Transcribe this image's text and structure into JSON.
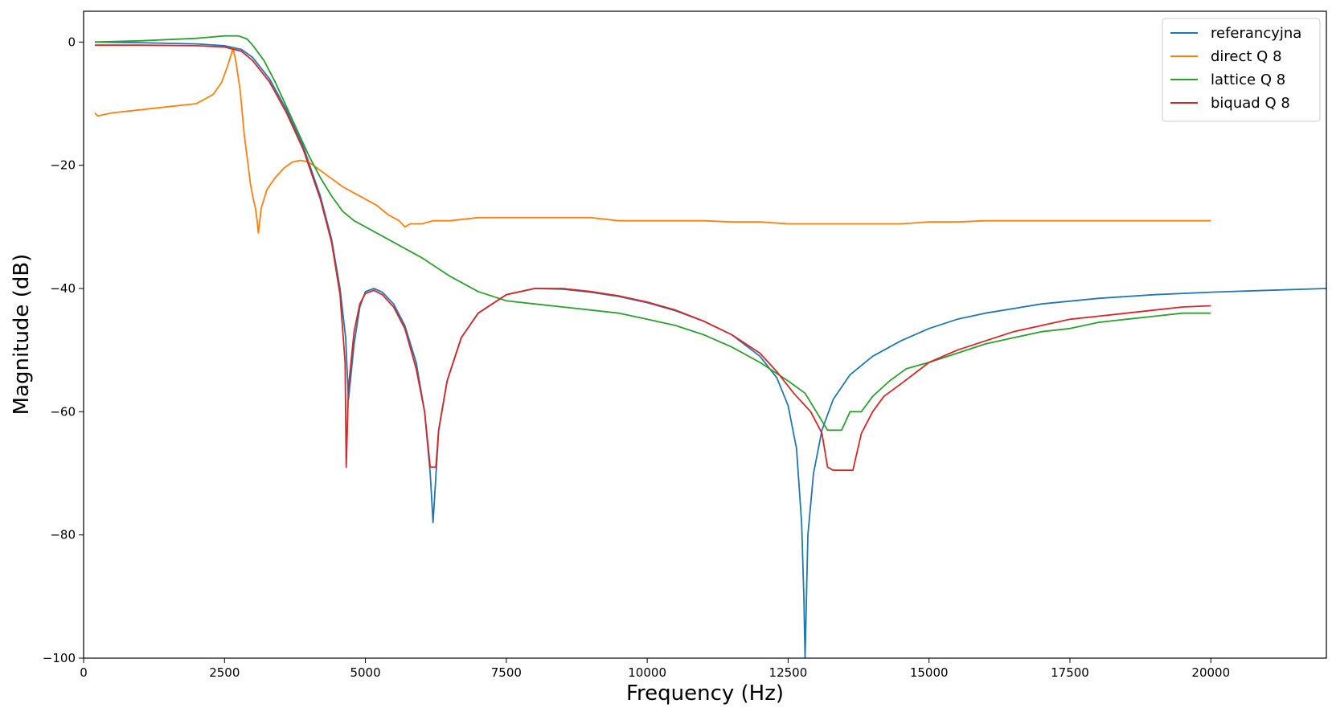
{
  "chart_data": {
    "type": "line",
    "title": "",
    "xlabel": "Frequency (Hz)",
    "ylabel": "Magnitude (dB)",
    "xlim": [
      0,
      22050
    ],
    "ylim": [
      -100,
      5
    ],
    "xticks": [
      0,
      2500,
      5000,
      7500,
      10000,
      12500,
      15000,
      17500,
      20000
    ],
    "xtick_labels": [
      "0",
      "2500",
      "5000",
      "7500",
      "10000",
      "12500",
      "15000",
      "17500",
      "20000"
    ],
    "yticks": [
      0,
      -20,
      -40,
      -60,
      -80,
      -100
    ],
    "ytick_labels": [
      "0",
      "−20",
      "−40",
      "−60",
      "−80",
      "−100"
    ],
    "grid": false,
    "legend": "top-right",
    "series": [
      {
        "name": "referancyjna",
        "color": "#1f77b4",
        "x": [
          200,
          1000,
          2000,
          2500,
          2800,
          3000,
          3300,
          3600,
          3900,
          4200,
          4400,
          4550,
          4650,
          4700,
          4800,
          4900,
          5000,
          5150,
          5300,
          5500,
          5700,
          5900,
          6050,
          6150,
          6200,
          6300,
          6450,
          6700,
          7000,
          7500,
          8000,
          8500,
          9000,
          9500,
          10000,
          10500,
          11000,
          11500,
          12000,
          12300,
          12500,
          12650,
          12740,
          12780,
          12800,
          12850,
          12950,
          13100,
          13300,
          13600,
          14000,
          14500,
          15000,
          15500,
          16000,
          17000,
          18000,
          19000,
          20000,
          21000,
          22050
        ],
        "y": [
          0,
          -0.1,
          -0.3,
          -0.6,
          -1.2,
          -2.5,
          -6,
          -11,
          -17,
          -25,
          -32,
          -40,
          -48,
          -58,
          -49,
          -43,
          -40.5,
          -40,
          -40.6,
          -42.5,
          -46,
          -52,
          -60,
          -70,
          -78,
          -63,
          -55,
          -48,
          -44,
          -41,
          -40,
          -40.1,
          -40.6,
          -41.3,
          -42.3,
          -43.6,
          -45.3,
          -47.5,
          -51,
          -54.5,
          -59,
          -66,
          -78,
          -90,
          -100,
          -80,
          -70,
          -63,
          -58,
          -54,
          -51,
          -48.5,
          -46.5,
          -45,
          -44,
          -42.5,
          -41.6,
          -41,
          -40.6,
          -40.3,
          -40
        ]
      },
      {
        "name": "direct Q 8",
        "color": "#ff7f0e",
        "x": [
          200,
          250,
          500,
          1000,
          1500,
          2000,
          2300,
          2450,
          2550,
          2620,
          2650,
          2700,
          2780,
          2850,
          2920,
          2960,
          3000,
          3050,
          3080,
          3100,
          3150,
          3250,
          3400,
          3550,
          3700,
          3850,
          4000,
          4150,
          4300,
          4450,
          4600,
          4800,
          5000,
          5200,
          5400,
          5600,
          5700,
          5800,
          6000,
          6200,
          6500,
          7000,
          7500,
          8000,
          8500,
          9000,
          9500,
          10000,
          10500,
          11000,
          11500,
          12000,
          12500,
          13000,
          13500,
          14000,
          14500,
          15000,
          15500,
          16000,
          16500,
          17000,
          17500,
          18000,
          18500,
          19000,
          19500,
          20000
        ],
        "y": [
          -11.5,
          -12,
          -11.5,
          -11,
          -10.5,
          -10,
          -8.5,
          -6.5,
          -4,
          -2,
          -1,
          -3,
          -8,
          -15,
          -20,
          -23,
          -25,
          -27,
          -29,
          -31,
          -27,
          -24,
          -22,
          -20.5,
          -19.5,
          -19.2,
          -19.5,
          -20.5,
          -21.5,
          -22.5,
          -23.5,
          -24.5,
          -25.5,
          -26.5,
          -28,
          -29,
          -30,
          -29.5,
          -29.5,
          -29,
          -29,
          -28.5,
          -28.5,
          -28.5,
          -28.5,
          -28.5,
          -29,
          -29,
          -29,
          -29,
          -29.2,
          -29.2,
          -29.5,
          -29.5,
          -29.5,
          -29.5,
          -29.5,
          -29.2,
          -29.2,
          -29,
          -29,
          -29,
          -29,
          -29,
          -29,
          -29,
          -29,
          -29
        ]
      },
      {
        "name": "lattice Q 8",
        "color": "#2ca02c",
        "x": [
          200,
          1000,
          2000,
          2500,
          2750,
          2900,
          3000,
          3200,
          3400,
          3600,
          3800,
          4000,
          4200,
          4400,
          4600,
          4800,
          5000,
          5300,
          5600,
          6000,
          6500,
          7000,
          7500,
          8000,
          8500,
          9000,
          9500,
          10000,
          10500,
          11000,
          11500,
          12000,
          12500,
          12800,
          13000,
          13200,
          13450,
          13600,
          13800,
          14000,
          14300,
          14600,
          15000,
          15500,
          16000,
          16500,
          17000,
          17500,
          18000,
          18500,
          19000,
          19500,
          20000
        ],
        "y": [
          0,
          0.2,
          0.6,
          1,
          1,
          0.5,
          -0.5,
          -3,
          -6.5,
          -10.5,
          -14.5,
          -18.5,
          -22,
          -25,
          -27.5,
          -29,
          -30,
          -31.5,
          -33,
          -35,
          -38,
          -40.5,
          -42,
          -42.5,
          -43,
          -43.5,
          -44,
          -45,
          -46,
          -47.5,
          -49.5,
          -52,
          -55,
          -57,
          -60,
          -63,
          -63,
          -60,
          -60,
          -57.5,
          -55,
          -53,
          -52,
          -50.5,
          -49,
          -48,
          -47,
          -46.5,
          -45.5,
          -45,
          -44.5,
          -44,
          -44
        ]
      },
      {
        "name": "biquad Q 8",
        "color": "#d62728",
        "x": [
          200,
          1000,
          2000,
          2500,
          2800,
          3000,
          3300,
          3600,
          3900,
          4200,
          4400,
          4550,
          4640,
          4660,
          4700,
          4800,
          4900,
          5000,
          5150,
          5300,
          5500,
          5700,
          5900,
          6050,
          6150,
          6250,
          6300,
          6450,
          6700,
          7000,
          7500,
          8000,
          8500,
          9000,
          9500,
          10000,
          10500,
          11000,
          11500,
          12000,
          12300,
          12600,
          12900,
          13100,
          13200,
          13300,
          13450,
          13650,
          13800,
          14000,
          14200,
          14500,
          15000,
          15500,
          16000,
          16500,
          17000,
          17500,
          18000,
          18500,
          19000,
          19500,
          20000
        ],
        "y": [
          -0.5,
          -0.5,
          -0.6,
          -0.8,
          -1.5,
          -3,
          -6.5,
          -11.5,
          -17.5,
          -25.5,
          -32.5,
          -41,
          -52,
          -69,
          -56,
          -47,
          -42.5,
          -40.8,
          -40.3,
          -41,
          -43,
          -46.5,
          -53,
          -60,
          -69,
          -69,
          -63,
          -55,
          -48,
          -44,
          -41,
          -40,
          -40,
          -40.5,
          -41.2,
          -42.2,
          -43.5,
          -45.3,
          -47.5,
          -50.5,
          -53.5,
          -57,
          -60,
          -63.5,
          -69,
          -69.5,
          -69.5,
          -69.5,
          -63.5,
          -60,
          -57.5,
          -55.5,
          -52,
          -50,
          -48.5,
          -47,
          -46,
          -45,
          -44.5,
          -44,
          -43.5,
          -43,
          -42.8
        ]
      }
    ]
  }
}
